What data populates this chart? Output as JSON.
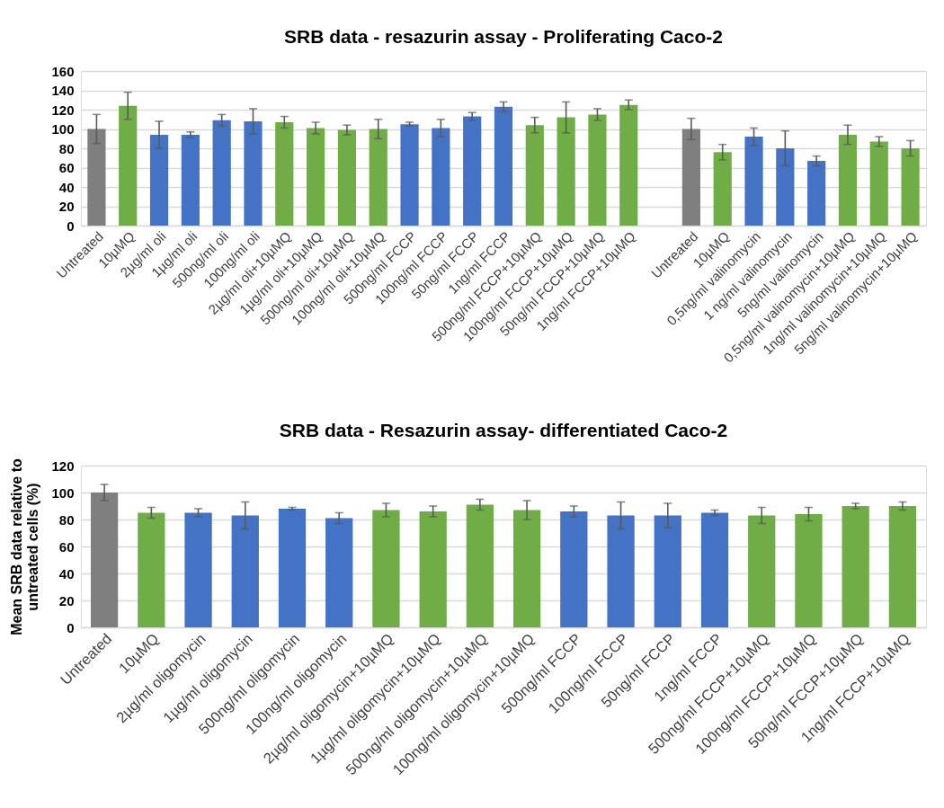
{
  "chart_data": [
    {
      "type": "bar",
      "title": "SRB data - resazurin assay - Proliferating Caco-2",
      "categories": [
        "Untreated",
        "10µMQ",
        "2µg/ml oli",
        "1µg/ml oli",
        "500ng/ml oli",
        "100ng/ml oli",
        "2µg/ml oli+10µMQ",
        "1µg/ml oli+10µMQ",
        "500ng/ml oli+10µMQ",
        "100ng/ml oli+10µMQ",
        "500ng/ml FCCP",
        "100ng/ml FCCP",
        "50ng/ml FCCP",
        "1ng/ml FCCP",
        "500ng/ml FCCP+10µMQ",
        "100ng/ml FCCP+10µMQ",
        "50ng/ml FCCP+10µMQ",
        "1ng/ml FCCP+10µMQ",
        null,
        "Untreated",
        "10µMQ",
        "0,5ng/ml valinomycin",
        "1 ng/ml valinomycin",
        "5ng/ml valinomycin",
        "0,5ng/ml valinomycin+10µMQ",
        "1ng/ml valinomycin+10µMQ",
        "5ng/ml valinomycin+10µMQ"
      ],
      "values": [
        100,
        124,
        94,
        94,
        109,
        108,
        107,
        101,
        99,
        100,
        105,
        101,
        113,
        123,
        104,
        112,
        115,
        125,
        null,
        100,
        76,
        92,
        80,
        67,
        94,
        87,
        80
      ],
      "errors": [
        15,
        14,
        14,
        3,
        6,
        13,
        6,
        6,
        5,
        10,
        2,
        9,
        4,
        5,
        8,
        16,
        6,
        5,
        null,
        11,
        8,
        9,
        18,
        5,
        10,
        5,
        8
      ],
      "colors": [
        "#7f7f7f",
        "#70ad47",
        "#4472c4",
        "#4472c4",
        "#4472c4",
        "#4472c4",
        "#70ad47",
        "#70ad47",
        "#70ad47",
        "#70ad47",
        "#4472c4",
        "#4472c4",
        "#4472c4",
        "#4472c4",
        "#70ad47",
        "#70ad47",
        "#70ad47",
        "#70ad47",
        null,
        "#7f7f7f",
        "#70ad47",
        "#4472c4",
        "#4472c4",
        "#4472c4",
        "#70ad47",
        "#70ad47",
        "#70ad47"
      ],
      "ylim": [
        0,
        160
      ],
      "yticks": [
        0,
        20,
        40,
        60,
        80,
        100,
        120,
        140,
        160
      ],
      "grid": "y"
    },
    {
      "type": "bar",
      "title": "SRB data - Resazurin assay- differentiated Caco-2",
      "ylabel": "Mean SRB data relative to untreated cells (%)",
      "categories": [
        "Untreated",
        "10µMQ",
        "2µg/ml oligomycin",
        "1µg/ml oligomycin",
        "500ng/ml oligomycin",
        "100ng/ml oligomycin",
        "2µg/ml oligomycin+10µMQ",
        "1µg/ml oligomycin+10µMQ",
        "500ng/ml oligomycin+10µMQ",
        "100ng/ml oligomycin+10µMQ",
        "500ng/ml FCCP",
        "100ng/ml FCCP",
        "50ng/ml FCCP",
        "1ng/ml FCCP",
        "500ng/ml FCCP+10µMQ",
        "100ng/ml FCCP+10µMQ",
        "50ng/ml FCCP+10µMQ",
        "1ng/ml FCCP+10µMQ"
      ],
      "values": [
        100,
        85,
        85,
        83,
        88,
        81,
        87,
        86,
        91,
        87,
        86,
        83,
        83,
        85,
        83,
        84,
        90,
        90
      ],
      "errors": [
        6,
        4,
        3,
        10,
        1,
        4,
        5,
        4,
        4,
        7,
        4,
        10,
        9,
        2,
        6,
        5,
        2,
        3
      ],
      "colors": [
        "#7f7f7f",
        "#70ad47",
        "#4472c4",
        "#4472c4",
        "#4472c4",
        "#4472c4",
        "#70ad47",
        "#70ad47",
        "#70ad47",
        "#70ad47",
        "#4472c4",
        "#4472c4",
        "#4472c4",
        "#4472c4",
        "#70ad47",
        "#70ad47",
        "#70ad47",
        "#70ad47"
      ],
      "ylim": [
        0,
        120
      ],
      "yticks": [
        0,
        20,
        40,
        60,
        80,
        100,
        120
      ],
      "grid": "y"
    }
  ]
}
